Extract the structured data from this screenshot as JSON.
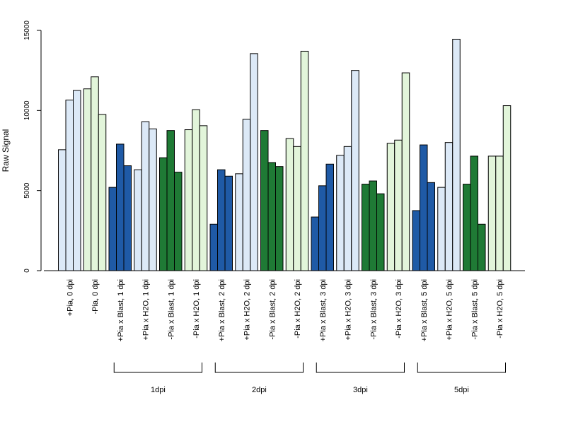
{
  "chart_data": {
    "type": "bar",
    "ylabel": "Raw Signal",
    "ylim": [
      0,
      15000
    ],
    "yticks": [
      0,
      5000,
      10000,
      15000
    ],
    "grid": false,
    "colors": {
      "plus_bar": "#dce9f7",
      "minus_bar": "#e2f5da",
      "blast_plus": "#1f5aa6",
      "blast_minus": "#1f7a35",
      "stroke": "#000000"
    },
    "categories": [
      {
        "label": "+Pia, 0 dpi",
        "style": "plus_bar",
        "values": [
          7550,
          10650,
          11250
        ]
      },
      {
        "label": "-Pia, 0 dpi",
        "style": "minus_bar",
        "values": [
          11350,
          12100,
          9750
        ]
      },
      {
        "label": "+Pia x Blast, 1 dpi",
        "style": "blast_plus",
        "values": [
          5200,
          7900,
          6550
        ]
      },
      {
        "label": "+Pia x H2O, 1 dpi",
        "style": "plus_bar",
        "values": [
          6300,
          9300,
          8850
        ]
      },
      {
        "label": "-Pia x Blast, 1 dpi",
        "style": "blast_minus",
        "values": [
          7050,
          8750,
          6150
        ]
      },
      {
        "label": "-Pia x H2O, 1 dpi",
        "style": "minus_bar",
        "values": [
          8800,
          10050,
          9050
        ]
      },
      {
        "label": "+Pia x Blast, 2 dpi",
        "style": "blast_plus",
        "values": [
          2900,
          6300,
          5900
        ]
      },
      {
        "label": "+Pia x H2O, 2 dpi",
        "style": "plus_bar",
        "values": [
          6050,
          9450,
          13550
        ]
      },
      {
        "label": "-Pia x Blast, 2 dpi",
        "style": "blast_minus",
        "values": [
          8750,
          6750,
          6500
        ]
      },
      {
        "label": "-Pia x H2O, 2 dpi",
        "style": "minus_bar",
        "values": [
          8250,
          7750,
          13700
        ]
      },
      {
        "label": "+Pia x Blast, 3 dpi",
        "style": "blast_plus",
        "values": [
          3350,
          5300,
          6650
        ]
      },
      {
        "label": "+Pia x H2O, 3 dpi",
        "style": "plus_bar",
        "values": [
          7200,
          7750,
          12500
        ]
      },
      {
        "label": "-Pia x Blast, 3 dpi",
        "style": "blast_minus",
        "values": [
          5400,
          5600,
          4800
        ]
      },
      {
        "label": "-Pia x H2O, 3 dpi",
        "style": "minus_bar",
        "values": [
          7950,
          8150,
          12350
        ]
      },
      {
        "label": "+Pia x Blast, 5 dpi",
        "style": "blast_plus",
        "values": [
          3750,
          7850,
          5500
        ]
      },
      {
        "label": "+Pia x H2O, 5 dpi",
        "style": "plus_bar",
        "values": [
          5200,
          8000,
          14450
        ]
      },
      {
        "label": "-Pia x Blast, 5 dpi",
        "style": "blast_minus",
        "values": [
          5400,
          7150,
          2900
        ]
      },
      {
        "label": "-Pia x H2O, 5 dpi",
        "style": "minus_bar",
        "values": [
          7150,
          7150,
          10300
        ]
      }
    ],
    "groups": [
      {
        "label": "1dpi",
        "from": 2,
        "to": 5
      },
      {
        "label": "2dpi",
        "from": 6,
        "to": 9
      },
      {
        "label": "3dpi",
        "from": 10,
        "to": 13
      },
      {
        "label": "5dpi",
        "from": 14,
        "to": 17
      }
    ]
  }
}
